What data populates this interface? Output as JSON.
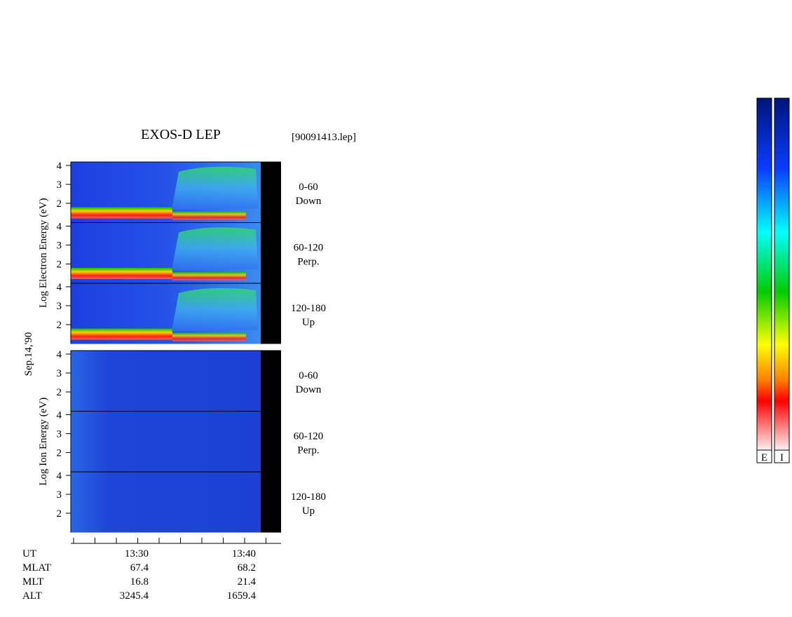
{
  "title": "EXOS-D LEP",
  "file": "[90091413.lep]",
  "date": "Sep.14,'90",
  "groups": [
    {
      "ylabel": "Log  Electron  Energy (eV)",
      "panels": [
        {
          "angle": "0-60",
          "direction": "Down",
          "yticks": [
            4,
            3,
            2
          ]
        },
        {
          "angle": "60-120",
          "direction": "Perp.",
          "yticks": [
            4,
            3,
            2
          ]
        },
        {
          "angle": "120-180",
          "direction": "Up",
          "yticks": [
            4,
            3,
            2
          ]
        }
      ]
    },
    {
      "ylabel": "Log  Ion  Energy (eV)",
      "panels": [
        {
          "angle": "0-60",
          "direction": "Down",
          "yticks": [
            4,
            3,
            2
          ]
        },
        {
          "angle": "60-120",
          "direction": "Perp.",
          "yticks": [
            4,
            3,
            2
          ]
        },
        {
          "angle": "120-180",
          "direction": "Up",
          "yticks": [
            4,
            3,
            2
          ]
        }
      ]
    }
  ],
  "ephemeris": [
    [
      "UT",
      "13:30",
      "13:40"
    ],
    [
      "MLAT",
      "67.4",
      "68.2"
    ],
    [
      "MLT",
      "16.8",
      "21.4"
    ],
    [
      "ALT",
      "3245.4",
      "1659.4"
    ]
  ],
  "colorbars": [
    "E",
    "I"
  ]
}
